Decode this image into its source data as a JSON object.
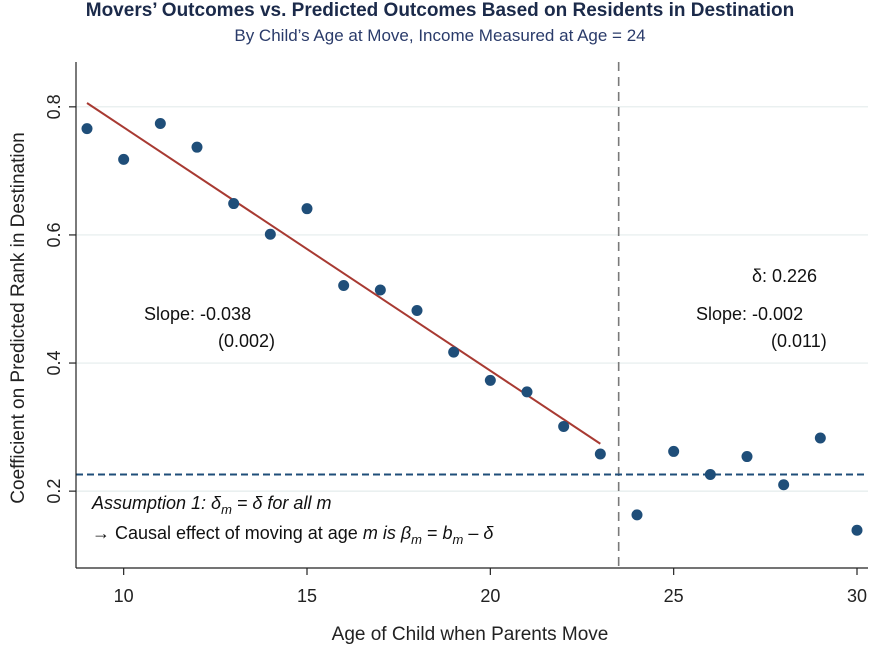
{
  "chart_data": {
    "type": "scatter",
    "title": "Movers’ Outcomes vs. Predicted Outcomes Based on Residents in Destination",
    "subtitle": "By Child’s Age at Move, Income Measured at Age = 24",
    "xlabel": "Age of Child when Parents Move",
    "ylabel": "Coefficient on Predicted Rank in Destination",
    "xlim": [
      8.7,
      30.3
    ],
    "ylim": [
      0.08,
      0.87
    ],
    "x_ticks": [
      10,
      15,
      20,
      25,
      30
    ],
    "y_ticks": [
      0.2,
      0.4,
      0.6,
      0.8
    ],
    "x_tick_labels": [
      "10",
      "15",
      "20",
      "25",
      "30"
    ],
    "y_tick_labels": [
      "0.2",
      "0.4",
      "0.6",
      "0.8"
    ],
    "grid": "horizontal",
    "points": {
      "x": [
        9,
        10,
        11,
        12,
        13,
        14,
        15,
        16,
        17,
        18,
        19,
        20,
        21,
        22,
        23,
        24,
        25,
        26,
        27,
        28,
        29,
        30
      ],
      "y": [
        0.766,
        0.718,
        0.774,
        0.737,
        0.649,
        0.601,
        0.641,
        0.521,
        0.514,
        0.482,
        0.417,
        0.373,
        0.355,
        0.301,
        0.258,
        0.163,
        0.262,
        0.226,
        0.254,
        0.21,
        0.283,
        0.139
      ],
      "color": "#1f4e79"
    },
    "fit_line": {
      "x": [
        9,
        23
      ],
      "y": [
        0.806,
        0.274
      ],
      "color": "#a83a32"
    },
    "cutoff_x": 23.5,
    "delta_line_y": 0.226,
    "annotations": {
      "left_slope": "Slope:  -0.038",
      "left_se": "(0.002)",
      "delta": "δ: 0.226",
      "right_slope": "Slope:  -0.002",
      "right_se": "(0.011)",
      "assumption_line1": "Assumption 1: δm = δ for all m",
      "assumption_line2": "→ Causal effect of moving at age m is  βm = bm – δ"
    }
  }
}
